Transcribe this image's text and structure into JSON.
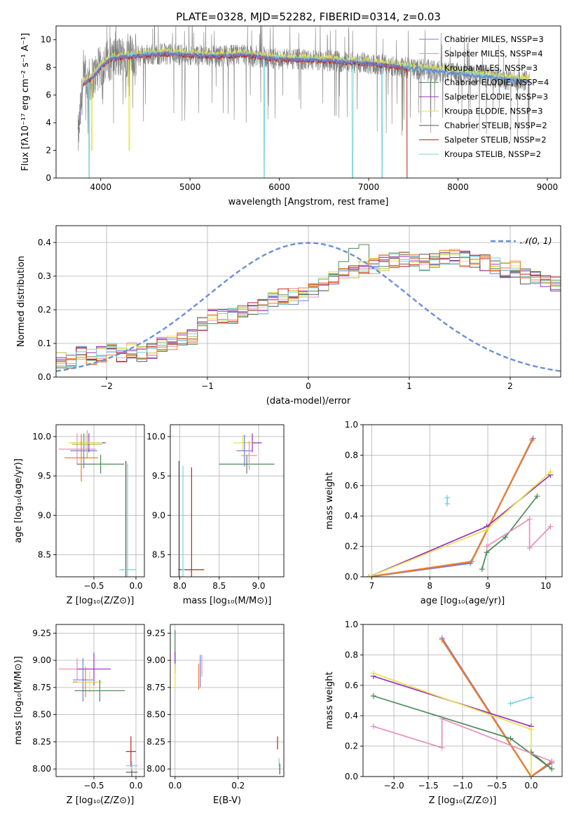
{
  "figure_title": "PLATE=0328, MJD=52282, FIBERID=0314, z=0.03",
  "colors": {
    "chabrier_miles": "#6e7fd6",
    "salpeter_miles": "#e88fbd",
    "kroupa_miles": "#b0c04a",
    "chabrier_elodie": "#4c8a57",
    "salpeter_elodie": "#9a2fbf",
    "kroupa_elodie": "#e6e24a",
    "chabrier_stelib": "#555555",
    "salpeter_stelib": "#b5261e",
    "kroupa_stelib": "#74d2dc",
    "orange": "#f07a28",
    "gray": "#7f7f7f",
    "normal_curve": "#6a8fd8"
  },
  "chart_data": [
    {
      "type": "line",
      "xlabel": "wavelength [Angstrom, rest frame]",
      "ylabel": "Flux [fλ10⁻¹⁷ erg cm⁻² s⁻¹ A⁻¹]",
      "xlim": [
        3500,
        9150
      ],
      "ylim": [
        0,
        11
      ],
      "xticks": [
        4000,
        5000,
        6000,
        7000,
        8000,
        9000
      ],
      "yticks": [
        0,
        2,
        4,
        6,
        8,
        10
      ],
      "legend_position": "top-right",
      "legend": [
        "Chabrier MILES, NSSP=3",
        "Salpeter MILES, NSSP=4",
        "Kroupa MILES, NSSP=3",
        "Chabrier ELODIE, NSSP=4",
        "Salpeter ELODIE, NSSP=3",
        "Kroupa ELODIE, NSSP=3",
        "Chabrier STELIB, NSSP=2",
        "Salpeter STELIB, NSSP=2",
        "Kroupa STELIB, NSSP=2"
      ],
      "continuum": {
        "x": [
          3750,
          3800,
          3900,
          4000,
          4100,
          4300,
          4500,
          4700,
          5000,
          5300,
          5600,
          6000,
          6500,
          7000,
          7400,
          7800,
          8200,
          8600,
          8800
        ],
        "y": [
          3.0,
          6.8,
          7.2,
          8.0,
          8.6,
          8.8,
          8.9,
          9.0,
          8.9,
          8.8,
          8.9,
          8.6,
          8.5,
          8.3,
          8.0,
          7.7,
          7.4,
          7.1,
          7.0
        ]
      }
    },
    {
      "type": "bar",
      "xlabel": "(data-model)/error",
      "ylabel": "Normed distribution",
      "xlim": [
        -2.5,
        2.5
      ],
      "ylim": [
        0,
        0.45
      ],
      "xticks": [
        -2,
        -1,
        0,
        1,
        2
      ],
      "yticks": [
        0.0,
        0.1,
        0.2,
        0.3,
        0.4
      ],
      "legend": [
        "𝒩(0, 1)"
      ],
      "legend_position": "top-right",
      "bin_width": 0.1,
      "bin_start": -2.5,
      "histogram_envelope": [
        0.05,
        0.05,
        0.07,
        0.06,
        0.07,
        0.08,
        0.07,
        0.08,
        0.07,
        0.08,
        0.1,
        0.1,
        0.11,
        0.12,
        0.16,
        0.18,
        0.18,
        0.18,
        0.2,
        0.2,
        0.21,
        0.23,
        0.24,
        0.24,
        0.25,
        0.26,
        0.28,
        0.29,
        0.3,
        0.31,
        0.32,
        0.33,
        0.34,
        0.35,
        0.35,
        0.35,
        0.34,
        0.35,
        0.36,
        0.36,
        0.35,
        0.34,
        0.34,
        0.33,
        0.32,
        0.32,
        0.3,
        0.29,
        0.29,
        0.28,
        0.26,
        0.25,
        0.24,
        0.23,
        0.21,
        0.2,
        0.18,
        0.17,
        0.16,
        0.16,
        0.14,
        0.13,
        0.12,
        0.11,
        0.1,
        0.09,
        0.08,
        0.08,
        0.07,
        0.06
      ]
    },
    {
      "type": "scatter",
      "xlabel": "Z [log₁₀(Z/Z⊙)]",
      "ylabel": "age  [log₁₀(age/yr)]",
      "xlim": [
        -0.95,
        0.1
      ],
      "ylim": [
        8.22,
        10.15
      ],
      "xticks": [
        -0.5,
        0.0
      ],
      "yticks": [
        8.5,
        9.0,
        9.5,
        10.0
      ],
      "points": [
        {
          "color": "chabrier_miles",
          "x": -0.62,
          "xerr": 0.16,
          "y": 9.82,
          "yerr": 0.22
        },
        {
          "color": "salpeter_miles",
          "x": -0.7,
          "xerr": 0.22,
          "y": 9.84,
          "yerr": 0.2
        },
        {
          "color": "kroupa_miles",
          "x": -0.58,
          "xerr": 0.18,
          "y": 9.9,
          "yerr": 0.18
        },
        {
          "color": "chabrier_elodie",
          "x": -0.42,
          "xerr": 0.28,
          "y": 9.65,
          "yerr": 0.12
        },
        {
          "color": "salpeter_elodie",
          "x": -0.56,
          "xerr": 0.2,
          "y": 9.92,
          "yerr": 0.12
        },
        {
          "color": "kroupa_elodie",
          "x": -0.6,
          "xerr": 0.2,
          "y": 9.92,
          "yerr": 0.1
        },
        {
          "color": "chabrier_stelib",
          "x": -0.12,
          "xerr": 0.02,
          "y": 8.31,
          "yerr": 1.38
        },
        {
          "color": "orange",
          "x": -0.65,
          "xerr": 0.2,
          "y": 9.73,
          "yerr": 0.3
        },
        {
          "color": "kroupa_stelib",
          "x": -0.1,
          "xerr": 0.1,
          "y": 8.31,
          "yerr": 1.35
        }
      ]
    },
    {
      "type": "scatter",
      "xlabel": "mass [log₁₀(M/M⊙)]",
      "ylabel": "",
      "xlim": [
        7.88,
        9.32
      ],
      "ylim": [
        8.22,
        10.15
      ],
      "xticks": [
        8.0,
        8.5,
        9.0
      ],
      "yticks": [
        8.5,
        9.0,
        9.5,
        10.0
      ],
      "points": [
        {
          "color": "chabrier_elodie",
          "x": 8.85,
          "xerr": 0.35,
          "y": 9.65,
          "yerr": 0.12
        },
        {
          "color": "salpeter_elodie",
          "x": 8.92,
          "xerr": 0.12,
          "y": 9.92,
          "yerr": 0.12
        },
        {
          "color": "kroupa_elodie",
          "x": 8.8,
          "xerr": 0.12,
          "y": 9.92,
          "yerr": 0.1
        },
        {
          "color": "chabrier_miles",
          "x": 8.82,
          "xerr": 0.1,
          "y": 9.82,
          "yerr": 0.2
        },
        {
          "color": "salpeter_miles",
          "x": 8.88,
          "xerr": 0.1,
          "y": 9.76,
          "yerr": 0.18
        },
        {
          "color": "chabrier_stelib",
          "x": 7.99,
          "xerr": 0.01,
          "y": 8.31,
          "yerr": 1.38
        },
        {
          "color": "salpeter_stelib",
          "x": 8.15,
          "xerr": 0.16,
          "y": 8.31,
          "yerr": 1.3
        },
        {
          "color": "kroupa_stelib",
          "x": 8.04,
          "xerr": 0.02,
          "y": 8.31,
          "yerr": 1.32
        }
      ]
    },
    {
      "type": "line",
      "xlabel": "age  [log₁₀(age/yr)]",
      "ylabel": "mass weight",
      "xlim": [
        6.85,
        10.28
      ],
      "ylim": [
        0,
        1
      ],
      "xticks": [
        7,
        8,
        9,
        10
      ],
      "yticks": [
        0.0,
        0.2,
        0.4,
        0.6,
        0.8,
        1.0
      ],
      "series": [
        {
          "color": "chabrier_miles",
          "x": [
            6.95,
            8.7,
            9.78
          ],
          "y": [
            0.0,
            0.09,
            0.91
          ]
        },
        {
          "color": "orange",
          "x": [
            6.95,
            8.72,
            9.76
          ],
          "y": [
            0.0,
            0.1,
            0.9
          ]
        },
        {
          "color": "salpeter_elodie",
          "x": [
            6.95,
            8.98,
            10.08
          ],
          "y": [
            0.0,
            0.33,
            0.67
          ]
        },
        {
          "color": "kroupa_elodie",
          "x": [
            6.95,
            8.98,
            10.08
          ],
          "y": [
            0.0,
            0.31,
            0.69
          ]
        },
        {
          "color": "chabrier_elodie",
          "x": [
            8.9,
            8.98,
            9.3,
            9.85
          ],
          "y": [
            0.05,
            0.16,
            0.26,
            0.53
          ]
        },
        {
          "color": "salpeter_miles",
          "x": [
            8.98,
            9.72,
            9.72,
            10.08
          ],
          "y": [
            0.2,
            0.38,
            0.19,
            0.33
          ]
        },
        {
          "color": "kroupa_stelib",
          "x": [
            8.3,
            8.3
          ],
          "y": [
            0.48,
            0.52
          ]
        }
      ]
    },
    {
      "type": "scatter",
      "xlabel": "Z [log₁₀(Z/Z⊙)]",
      "ylabel": "mass [log₁₀(M/M⊙)]",
      "xlim": [
        -0.95,
        0.1
      ],
      "ylim": [
        7.93,
        9.33
      ],
      "xticks": [
        -0.5,
        0.0
      ],
      "yticks": [
        8.0,
        8.25,
        8.5,
        8.75,
        9.0,
        9.25
      ],
      "points": [
        {
          "color": "salpeter_miles",
          "x": -0.7,
          "xerr": 0.22,
          "y": 8.92,
          "yerr": 0.1
        },
        {
          "color": "salpeter_elodie",
          "x": -0.5,
          "xerr": 0.2,
          "y": 8.92,
          "yerr": 0.15
        },
        {
          "color": "chabrier_miles",
          "x": -0.63,
          "xerr": 0.12,
          "y": 8.82,
          "yerr": 0.2
        },
        {
          "color": "orange",
          "x": -0.6,
          "xerr": 0.15,
          "y": 8.8,
          "yerr": 0.14
        },
        {
          "color": "kroupa_elodie",
          "x": -0.55,
          "xerr": 0.15,
          "y": 8.8,
          "yerr": 0.1
        },
        {
          "color": "chabrier_elodie",
          "x": -0.43,
          "xerr": 0.3,
          "y": 8.72,
          "yerr": 0.1
        },
        {
          "color": "salpeter_stelib",
          "x": -0.06,
          "xerr": 0.06,
          "y": 8.16,
          "yerr": 0.14
        },
        {
          "color": "chabrier_stelib",
          "x": -0.05,
          "xerr": 0.07,
          "y": 7.97,
          "yerr": 0.06
        },
        {
          "color": "kroupa_stelib",
          "x": -0.05,
          "xerr": 0.07,
          "y": 8.03,
          "yerr": 0.04
        }
      ]
    },
    {
      "type": "scatter",
      "xlabel": "E(B-V)",
      "ylabel": "",
      "xlim": [
        -0.015,
        0.345
      ],
      "ylim": [
        7.93,
        9.33
      ],
      "xticks": [
        0.0,
        0.2
      ],
      "yticks": [
        8.0,
        8.25,
        8.5,
        8.75,
        9.0,
        9.25
      ],
      "points": [
        {
          "color": "chabrier_elodie",
          "x": 0.0,
          "y": 9.08,
          "yerr": 0.2
        },
        {
          "color": "salpeter_elodie",
          "x": 0.0,
          "y": 9.0,
          "yerr": 0.08
        },
        {
          "color": "kroupa_elodie",
          "x": 0.0,
          "y": 8.85,
          "yerr": 0.12
        },
        {
          "color": "orange",
          "x": 0.075,
          "y": 8.85,
          "yerr": 0.12
        },
        {
          "color": "salpeter_miles",
          "x": 0.085,
          "y": 8.95,
          "yerr": 0.1
        },
        {
          "color": "chabrier_miles",
          "x": 0.08,
          "y": 8.9,
          "yerr": 0.15
        },
        {
          "color": "salpeter_stelib",
          "x": 0.325,
          "y": 8.24,
          "yerr": 0.06
        },
        {
          "color": "chabrier_stelib",
          "x": 0.332,
          "y": 8.0,
          "yerr": 0.05
        },
        {
          "color": "kroupa_stelib",
          "x": 0.33,
          "y": 8.06,
          "yerr": 0.04
        }
      ]
    },
    {
      "type": "line",
      "xlabel": "Z [log₁₀(Z/Z⊙)]",
      "ylabel": "mass weight",
      "xlim": [
        -2.45,
        0.45
      ],
      "ylim": [
        0,
        1
      ],
      "xticks": [
        -2.0,
        -1.5,
        -1.0,
        -0.5,
        0.0
      ],
      "yticks": [
        0.0,
        0.2,
        0.4,
        0.6,
        0.8,
        1.0
      ],
      "series": [
        {
          "color": "chabrier_miles",
          "x": [
            -1.3,
            0.0,
            0.3
          ],
          "y": [
            0.91,
            0.0,
            0.09
          ]
        },
        {
          "color": "orange",
          "x": [
            -1.3,
            0.0,
            0.3
          ],
          "y": [
            0.9,
            0.0,
            0.1
          ]
        },
        {
          "color": "salpeter_elodie",
          "x": [
            -2.3,
            0.0
          ],
          "y": [
            0.66,
            0.33
          ]
        },
        {
          "color": "kroupa_elodie",
          "x": [
            -2.3,
            0.0,
            0.0
          ],
          "y": [
            0.68,
            0.31,
            0.0
          ]
        },
        {
          "color": "chabrier_elodie",
          "x": [
            -2.3,
            -0.3,
            0.3,
            0.0
          ],
          "y": [
            0.53,
            0.25,
            0.05,
            0.16
          ]
        },
        {
          "color": "salpeter_miles",
          "x": [
            -2.3,
            -1.3,
            -1.3,
            0.3
          ],
          "y": [
            0.33,
            0.19,
            0.38,
            0.1
          ]
        },
        {
          "color": "kroupa_stelib",
          "x": [
            -0.3,
            0.0
          ],
          "y": [
            0.48,
            0.52
          ]
        }
      ]
    }
  ]
}
